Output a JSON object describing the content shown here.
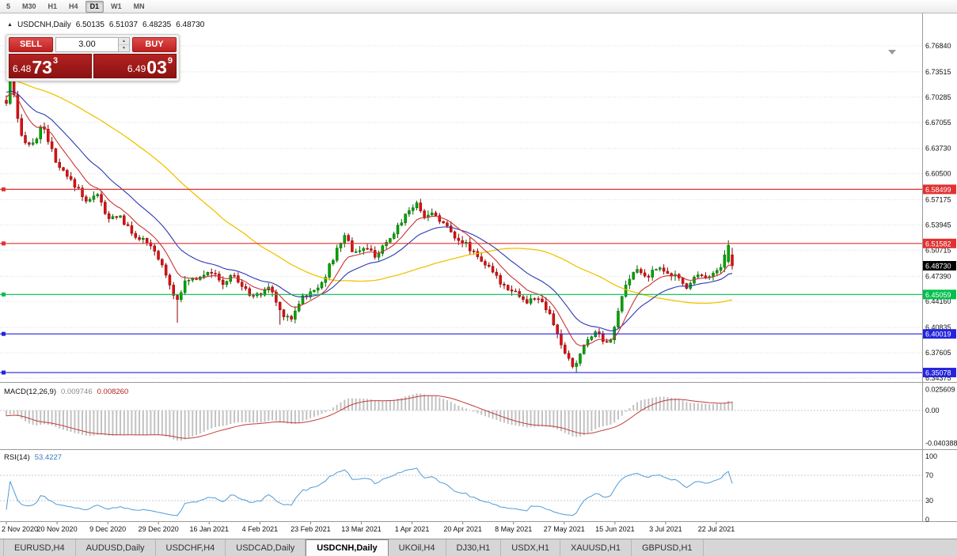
{
  "toolbar": {
    "timeframes": [
      "5",
      "M30",
      "H1",
      "H4",
      "D1",
      "W1",
      "MN"
    ],
    "active_timeframe": "D1"
  },
  "chart_header": {
    "collapse_icon": "▲",
    "symbol": "USDCNH,Daily",
    "open": "6.50135",
    "high": "6.51037",
    "low": "6.48235",
    "close": "6.48730"
  },
  "trade_widget": {
    "sell_label": "SELL",
    "buy_label": "BUY",
    "volume": "3.00",
    "spin_up_icon": "▲",
    "spin_down_icon": "▼",
    "sell_price": {
      "prefix": "6.48",
      "big": "73",
      "sup": "3"
    },
    "buy_price": {
      "prefix": "6.49",
      "big": "03",
      "sup": "9"
    }
  },
  "price_axis": {
    "labels": [
      "6.76840",
      "6.73515",
      "6.70285",
      "6.67055",
      "6.63730",
      "6.60500",
      "6.57175",
      "6.53945",
      "6.50715",
      "6.47390",
      "6.44160",
      "6.40835",
      "6.37605",
      "6.34375"
    ],
    "current": {
      "label": "6.48730",
      "price": 6.4873,
      "color": "#000000"
    }
  },
  "hlines": [
    {
      "label": "6.58499",
      "price": 6.58499,
      "color": "#e03232"
    },
    {
      "label": "6.51582",
      "price": 6.51582,
      "color": "#e03232"
    },
    {
      "label": "6.45059",
      "price": 6.45059,
      "color": "#00bf4a"
    },
    {
      "label": "6.40019",
      "price": 6.40019,
      "color": "#2424dd"
    },
    {
      "label": "6.35078",
      "price": 6.35078,
      "color": "#2424dd"
    }
  ],
  "macd_panel": {
    "title": "MACD(12,26,9)",
    "value_main": "0.009746",
    "value_signal": "0.008260",
    "axis": [
      "0.025609",
      "0.00",
      "-0.040388"
    ]
  },
  "rsi_panel": {
    "title": "RSI(14)",
    "value": "53.4227",
    "axis": [
      "100",
      "70",
      "30",
      "0"
    ],
    "levels": [
      70,
      30
    ]
  },
  "date_axis": {
    "labels": [
      "2 Nov 2020",
      "20 Nov 2020",
      "9 Dec 2020",
      "29 Dec 2020",
      "16 Jan 2021",
      "4 Feb 2021",
      "23 Feb 2021",
      "13 Mar 2021",
      "1 Apr 2021",
      "20 Apr 2021",
      "8 May 2021",
      "27 May 2021",
      "15 Jun 2021",
      "3 Jul 2021",
      "22 Jul 2021"
    ]
  },
  "tabs": {
    "items": [
      "EURUSD,H4",
      "AUDUSD,Daily",
      "USDCHF,H4",
      "USDCAD,Daily",
      "USDCNH,Daily",
      "UKOil,H4",
      "DJ30,H1",
      "USDX,H1",
      "XAUUSD,H1",
      "GBPUSD,H1"
    ],
    "active": "USDCNH,Daily"
  },
  "colors": {
    "up_fill": "#00a400",
    "up_edge": "#006600",
    "down_fill": "#dd1111",
    "down_edge": "#8b0000",
    "macd_hist": "#c2c2c2",
    "macd_signal": "#c23b3b",
    "rsi_line": "#4f9bd5",
    "grid": "#dcdcdc"
  },
  "chart_data": {
    "type": "candlestick",
    "symbol": "USDCNH",
    "timeframe": "Daily",
    "candles_visible": 192,
    "range": {
      "from": "2 Nov 2020",
      "to": "30 Jul 2021"
    },
    "price_scale": {
      "top": 6.7684,
      "bottom": 6.34375
    },
    "last_candle": {
      "open": 6.50135,
      "high": 6.51037,
      "low": 6.48235,
      "close": 6.4873
    },
    "spike_high_candle": {
      "index": 190,
      "open": 6.4925,
      "high": 6.52,
      "low": 6.49,
      "close": 6.5135
    },
    "wick_overrides": [
      {
        "index": 1,
        "high": 6.7315
      },
      {
        "index": 45,
        "low": 6.4145
      },
      {
        "index": 72,
        "low": 6.412
      },
      {
        "index": 150,
        "low": 6.3508
      }
    ],
    "moving_averages": [
      {
        "type": "sma",
        "period": 55,
        "color": "#f0c400"
      },
      {
        "type": "ema",
        "period": 21,
        "color": "#2b38b5"
      },
      {
        "type": "ema",
        "period": 9,
        "color": "#cc3333"
      }
    ],
    "macd": {
      "fast": 12,
      "slow": 26,
      "signal": 9
    },
    "rsi": {
      "period": 14
    },
    "price_path": [
      [
        0,
        6.695
      ],
      [
        0.0065,
        6.728
      ],
      [
        0.0185,
        6.655
      ],
      [
        0.035,
        6.64
      ],
      [
        0.051,
        6.668
      ],
      [
        0.068,
        6.618
      ],
      [
        0.084,
        6.6
      ],
      [
        0.1,
        6.585
      ],
      [
        0.113,
        6.566
      ],
      [
        0.124,
        6.585
      ],
      [
        0.139,
        6.545
      ],
      [
        0.155,
        6.553
      ],
      [
        0.171,
        6.53
      ],
      [
        0.188,
        6.52
      ],
      [
        0.204,
        6.505
      ],
      [
        0.22,
        6.478
      ],
      [
        0.233,
        6.443
      ],
      [
        0.248,
        6.468
      ],
      [
        0.264,
        6.473
      ],
      [
        0.28,
        6.483
      ],
      [
        0.297,
        6.463
      ],
      [
        0.313,
        6.476
      ],
      [
        0.329,
        6.455
      ],
      [
        0.346,
        6.448
      ],
      [
        0.362,
        6.461
      ],
      [
        0.378,
        6.428
      ],
      [
        0.393,
        6.42
      ],
      [
        0.406,
        6.447
      ],
      [
        0.422,
        6.453
      ],
      [
        0.438,
        6.472
      ],
      [
        0.455,
        6.506
      ],
      [
        0.466,
        6.528
      ],
      [
        0.477,
        6.506
      ],
      [
        0.493,
        6.509
      ],
      [
        0.509,
        6.501
      ],
      [
        0.526,
        6.516
      ],
      [
        0.542,
        6.542
      ],
      [
        0.555,
        6.56
      ],
      [
        0.567,
        6.566
      ],
      [
        0.578,
        6.549
      ],
      [
        0.589,
        6.556
      ],
      [
        0.602,
        6.541
      ],
      [
        0.618,
        6.526
      ],
      [
        0.635,
        6.513
      ],
      [
        0.651,
        6.499
      ],
      [
        0.667,
        6.481
      ],
      [
        0.684,
        6.463
      ],
      [
        0.7,
        6.456
      ],
      [
        0.717,
        6.439
      ],
      [
        0.731,
        6.449
      ],
      [
        0.746,
        6.428
      ],
      [
        0.76,
        6.398
      ],
      [
        0.771,
        6.371
      ],
      [
        0.782,
        6.357
      ],
      [
        0.793,
        6.379
      ],
      [
        0.804,
        6.399
      ],
      [
        0.815,
        6.403
      ],
      [
        0.826,
        6.389
      ],
      [
        0.836,
        6.399
      ],
      [
        0.847,
        6.446
      ],
      [
        0.858,
        6.469
      ],
      [
        0.869,
        6.483
      ],
      [
        0.88,
        6.473
      ],
      [
        0.891,
        6.479
      ],
      [
        0.902,
        6.489
      ],
      [
        0.913,
        6.471
      ],
      [
        0.924,
        6.476
      ],
      [
        0.935,
        6.459
      ],
      [
        0.946,
        6.471
      ],
      [
        0.956,
        6.479
      ],
      [
        0.967,
        6.473
      ],
      [
        0.978,
        6.479
      ],
      [
        0.987,
        6.492
      ],
      [
        0.9935,
        6.513
      ],
      [
        1,
        6.4873
      ]
    ]
  }
}
